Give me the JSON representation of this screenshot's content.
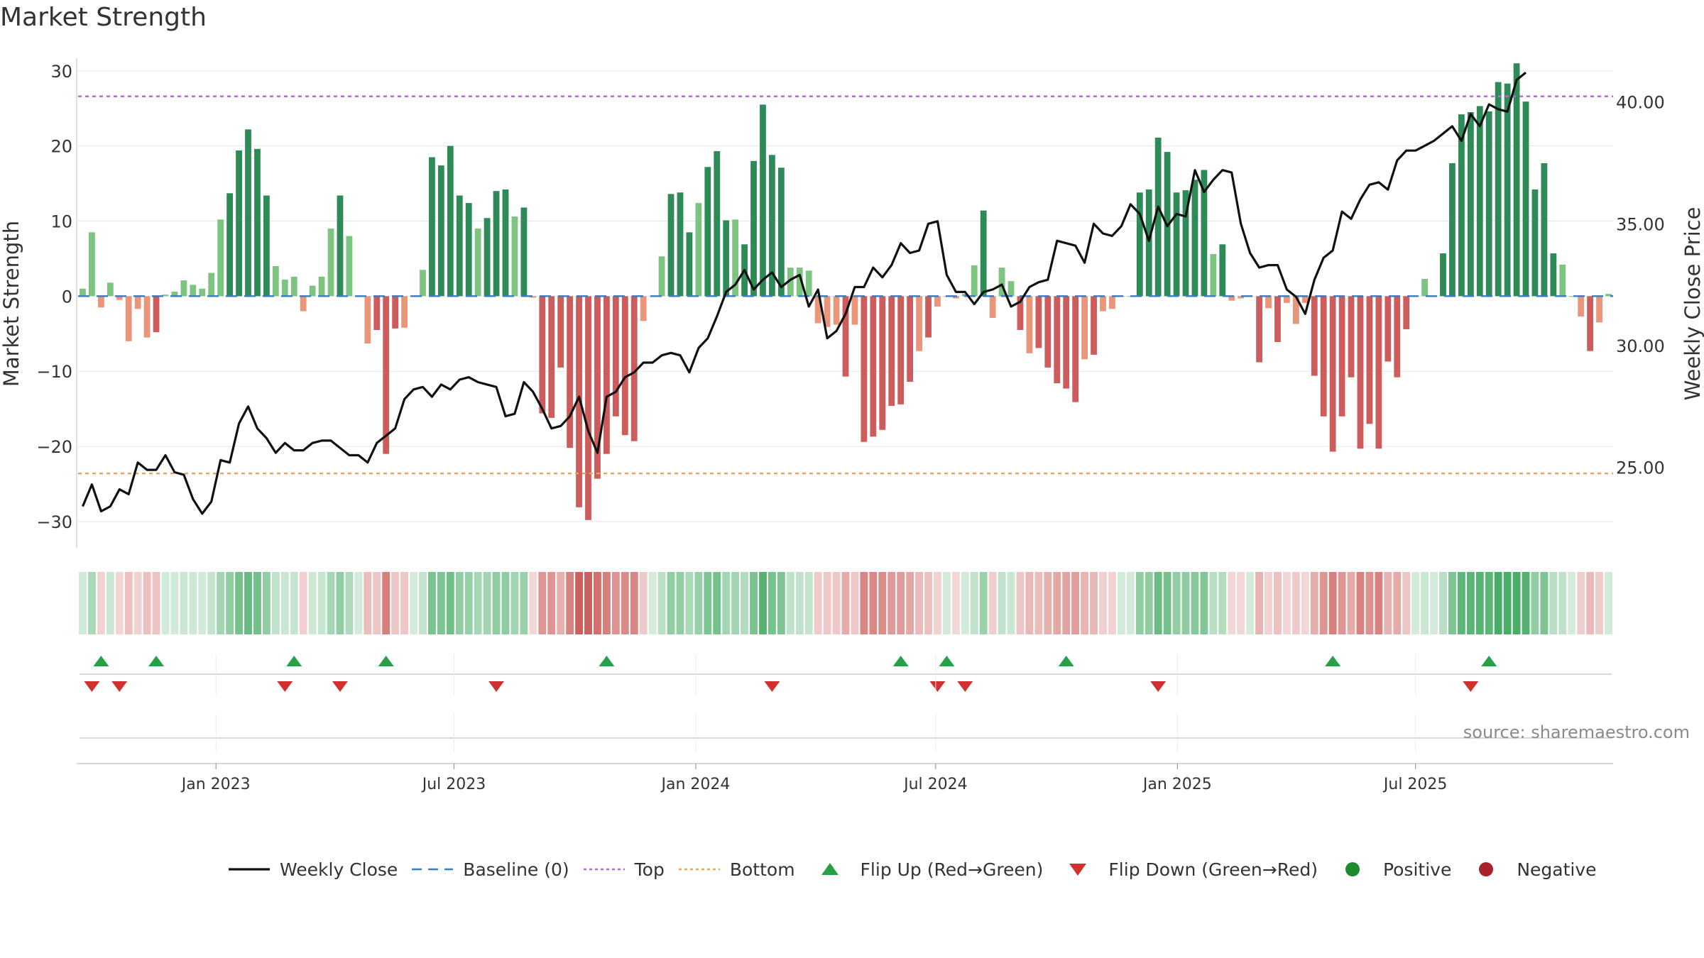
{
  "chart_data": {
    "type": "bar+line",
    "title": "Market Strength",
    "ylabel_left": "Market Strength",
    "ylabel_right": "Weekly Close Price",
    "y_left_range": [
      -33.5,
      33
    ],
    "y_left_ticks": [
      30,
      20,
      10,
      0,
      -10,
      -20,
      -30
    ],
    "y_left_tick_labels": [
      "30",
      "20",
      "10",
      "0",
      "−10",
      "−20",
      "−30"
    ],
    "y_right_range": [
      21.7,
      42.2
    ],
    "y_right_ticks": [
      25,
      30,
      35,
      40
    ],
    "y_right_tick_labels": [
      "25.00",
      "30.00",
      "35.00",
      "40.00"
    ],
    "top_level": 26.6,
    "bottom_level": -23.6,
    "x_ticks": [
      {
        "label": "Jan 2023",
        "week": 14.5
      },
      {
        "label": "Jul 2023",
        "week": 40.4
      },
      {
        "label": "Jan 2024",
        "week": 66.7
      },
      {
        "label": "Jul 2024",
        "week": 92.8
      },
      {
        "label": "Jan 2025",
        "week": 119.1
      },
      {
        "label": "Jul 2025",
        "week": 145.0
      }
    ],
    "strength_values": [
      1,
      8.5,
      -1.5,
      1.8,
      -0.5,
      -6,
      -1.7,
      -5.5,
      -4.8,
      0.2,
      0.6,
      2.1,
      1.5,
      1,
      3.1,
      10.2,
      13.7,
      19.4,
      22.2,
      19.6,
      13.4,
      4,
      2.2,
      2.6,
      -2,
      1.4,
      2.6,
      9,
      13.4,
      8,
      0,
      -6.3,
      -4.5,
      -21,
      -4.3,
      -4.2,
      0,
      3.5,
      18.5,
      17.4,
      20,
      13.4,
      12.4,
      9,
      10.4,
      14,
      14.2,
      10.6,
      11.8,
      -0.2,
      -15.6,
      -16.2,
      -9.5,
      -20.2,
      -28.1,
      -29.8,
      -24.3,
      -21,
      -16,
      -18.5,
      -19.3,
      -3.3,
      0,
      5.3,
      13.6,
      13.8,
      8.5,
      12.4,
      17.2,
      19.3,
      10.1,
      10.2,
      6.9,
      18,
      25.5,
      18.8,
      17.1,
      3.8,
      3.8,
      3.4,
      -3.6,
      -4.1,
      -3.8,
      -10.7,
      -3.8,
      -19.4,
      -18.7,
      -17.8,
      -14.6,
      -14.4,
      -11.4,
      -7.3,
      -5.5,
      -1.4,
      0,
      -0.3,
      0.3,
      4.1,
      11.4,
      -2.9,
      3.8,
      2,
      -4.5,
      -7.6,
      -6.9,
      -9.5,
      -11.6,
      -12.3,
      -14.1,
      -8.4,
      -7.8,
      -2,
      -1.7,
      0,
      0,
      13.8,
      14.2,
      21.1,
      19.2,
      13.8,
      14.1,
      15.5,
      16.8,
      5.6,
      6.9,
      -0.6,
      -0.3,
      0,
      -8.8,
      -1.6,
      -6.1,
      -0.9,
      -3.7,
      -0.9,
      -10.6,
      -16,
      -20.7,
      -16,
      -10.8,
      -20.3,
      -17,
      -20.3,
      -8.7,
      -10.8,
      -4.4,
      0,
      2.3,
      0,
      5.7,
      17.7,
      24.2,
      24.5,
      25.3,
      24.6,
      28.5,
      28.3,
      31,
      25.9,
      14.2,
      17.7,
      5.7,
      4.2,
      0,
      -2.7,
      -7.3,
      -3.5,
      0.3
    ],
    "close_values": [
      23.4,
      24.3,
      23.2,
      23.4,
      24.1,
      23.9,
      25.2,
      24.9,
      24.9,
      25.5,
      24.8,
      24.7,
      23.7,
      23.1,
      23.6,
      25.3,
      25.2,
      26.8,
      27.5,
      26.6,
      26.2,
      25.6,
      26.0,
      25.7,
      25.7,
      26.0,
      26.1,
      26.1,
      25.8,
      25.5,
      25.5,
      25.2,
      26.0,
      26.3,
      26.6,
      27.8,
      28.2,
      28.3,
      27.9,
      28.4,
      28.2,
      28.6,
      28.7,
      28.5,
      28.4,
      28.3,
      27.1,
      27.2,
      28.5,
      28.1,
      27.4,
      26.6,
      26.7,
      27.1,
      27.9,
      26.5,
      25.6,
      27.9,
      28.1,
      28.7,
      28.9,
      29.3,
      29.3,
      29.6,
      29.7,
      29.6,
      28.9,
      29.9,
      30.3,
      31.2,
      32.2,
      32.5,
      33.1,
      32.3,
      32.7,
      33.0,
      32.4,
      32.7,
      32.9,
      31.6,
      32.3,
      30.3,
      30.6,
      31.3,
      32.4,
      32.4,
      33.2,
      32.8,
      33.3,
      34.2,
      33.8,
      33.9,
      35.0,
      35.1,
      32.9,
      32.2,
      32.2,
      31.7,
      32.2,
      32.3,
      32.5,
      31.6,
      31.8,
      32.4,
      32.6,
      32.7,
      34.3,
      34.2,
      34.1,
      33.4,
      35.0,
      34.6,
      34.5,
      34.9,
      35.8,
      35.4,
      34.3,
      35.7,
      34.9,
      35.4,
      35.3,
      37.2,
      36.3,
      36.8,
      37.2,
      37.1,
      35.0,
      33.8,
      33.2,
      33.3,
      33.3,
      32.3,
      32.0,
      31.3,
      32.7,
      33.6,
      33.9,
      35.5,
      35.2,
      36.0,
      36.6,
      36.7,
      36.4,
      37.6,
      38.0,
      38.0,
      38.2,
      38.4,
      38.7,
      39.0,
      38.4,
      39.5,
      39.0,
      39.9,
      39.7,
      39.6,
      40.9,
      41.2
    ],
    "flip_up_weeks": [
      2,
      8,
      23,
      33,
      57,
      89,
      94,
      107,
      136,
      153
    ],
    "flip_down_weeks": [
      1,
      4,
      22,
      28,
      45,
      75,
      93,
      96,
      117,
      151
    ],
    "source_text": "source: sharemaestro.com",
    "legend": [
      {
        "label": "Weekly Close",
        "symbol": "line",
        "color": "#111111"
      },
      {
        "label": "Baseline (0)",
        "symbol": "dash",
        "color": "#3a7abf"
      },
      {
        "label": "Top",
        "symbol": "dot",
        "color": "#b06ccf"
      },
      {
        "label": "Bottom",
        "symbol": "dot",
        "color": "#e9a55a"
      },
      {
        "label": "Flip Up (Red→Green)",
        "symbol": "triangle-up",
        "color": "#27a047"
      },
      {
        "label": "Flip Down (Green→Red)",
        "symbol": "triangle-down",
        "color": "#d03030"
      },
      {
        "label": "Positive",
        "symbol": "circle",
        "color": "#1e8a2e"
      },
      {
        "label": "Negative",
        "symbol": "circle",
        "color": "#a82228"
      }
    ],
    "colors": {
      "pos_strong": "#2e8b57",
      "pos_light": "#7cc47f",
      "neg_strong": "#cd5c5c",
      "neg_light": "#e9967a",
      "close_line": "#111111",
      "baseline": "#3a7abf",
      "top": "#b06ccf",
      "bottom": "#e9a55a",
      "grid": "#e6e6e6",
      "axis": "#cccccc"
    }
  }
}
